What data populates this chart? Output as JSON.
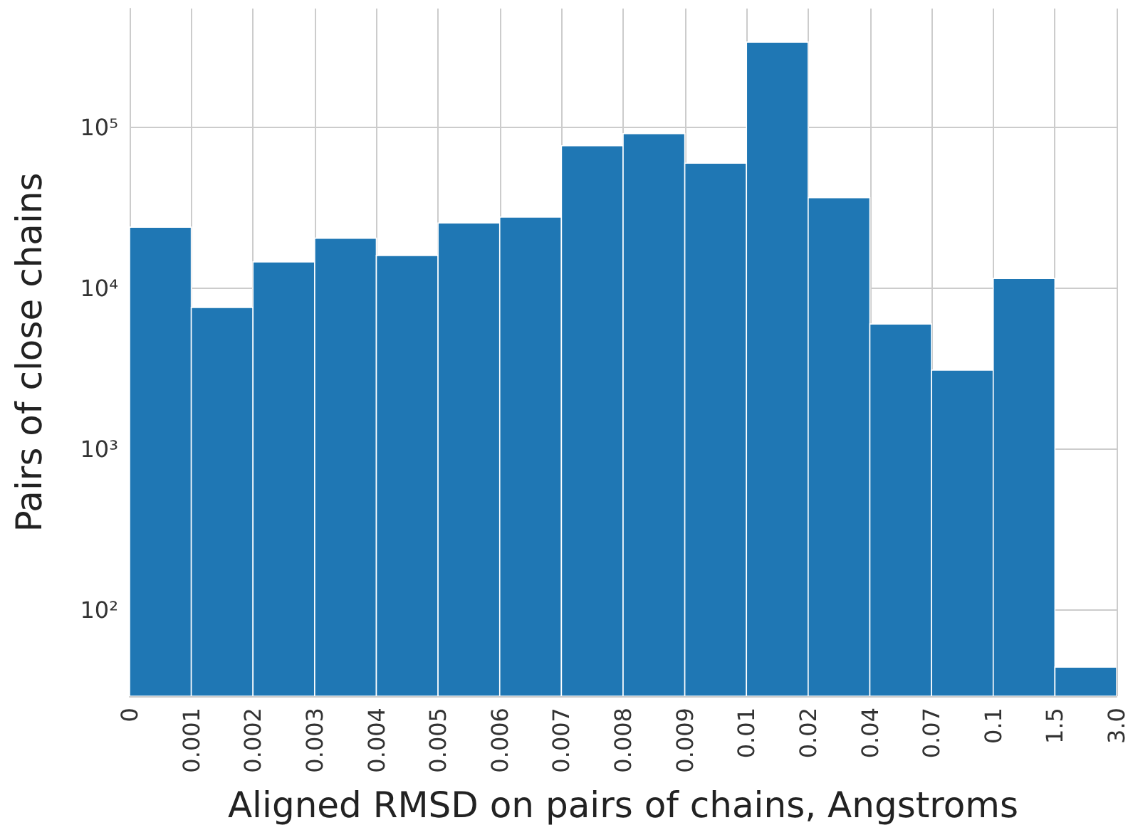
{
  "chart_data": {
    "type": "bar",
    "xlabel": "Aligned RMSD on pairs of chains, Angstroms",
    "ylabel": "Pairs of close chains",
    "categories": [
      "0",
      "0.001",
      "0.002",
      "0.003",
      "0.004",
      "0.005",
      "0.006",
      "0.007",
      "0.008",
      "0.009",
      "0.01",
      "0.02",
      "0.04",
      "0.07",
      "0.1",
      "1.5",
      "3.0"
    ],
    "values": [
      24000,
      7600,
      14600,
      20500,
      16000,
      25500,
      27700,
      77000,
      91600,
      60000,
      340000,
      36600,
      6000,
      3100,
      11500,
      44,
      null
    ],
    "color": "#1f77b4",
    "log": true,
    "ylim": [
      29,
      550000
    ],
    "yticks": [
      {
        "value": 100,
        "label": "10²"
      },
      {
        "value": 1000,
        "label": "10³"
      },
      {
        "value": 10000,
        "label": "10⁴"
      },
      {
        "value": 100000,
        "label": "10⁵"
      }
    ],
    "grid": true
  }
}
